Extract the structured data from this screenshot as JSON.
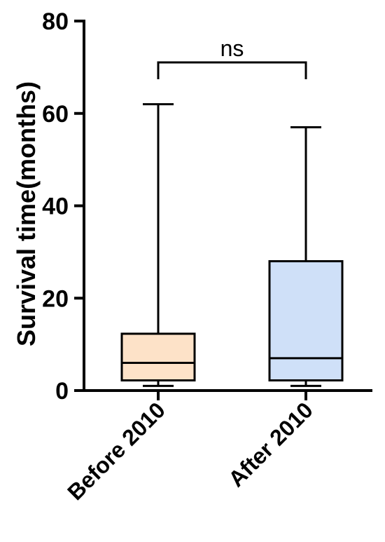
{
  "chart_data": {
    "type": "box",
    "ylabel": "Survival time(months)",
    "xlabel": "",
    "ylim": [
      0,
      80
    ],
    "yticks": [
      "0",
      "20",
      "40",
      "60",
      "80"
    ],
    "categories": [
      "Before 2010",
      "After 2010"
    ],
    "boxes": [
      {
        "category": "Before 2010",
        "min": 1,
        "q1": 2.2,
        "median": 6,
        "q3": 12.3,
        "max": 62,
        "fill": "#fde2c8"
      },
      {
        "category": "After 2010",
        "min": 1,
        "q1": 2.2,
        "median": 7,
        "q3": 28,
        "max": 57,
        "fill": "#cfe0f8"
      }
    ],
    "significance": {
      "label": "ns",
      "between": [
        "Before 2010",
        "After 2010"
      ]
    },
    "grid": false
  }
}
